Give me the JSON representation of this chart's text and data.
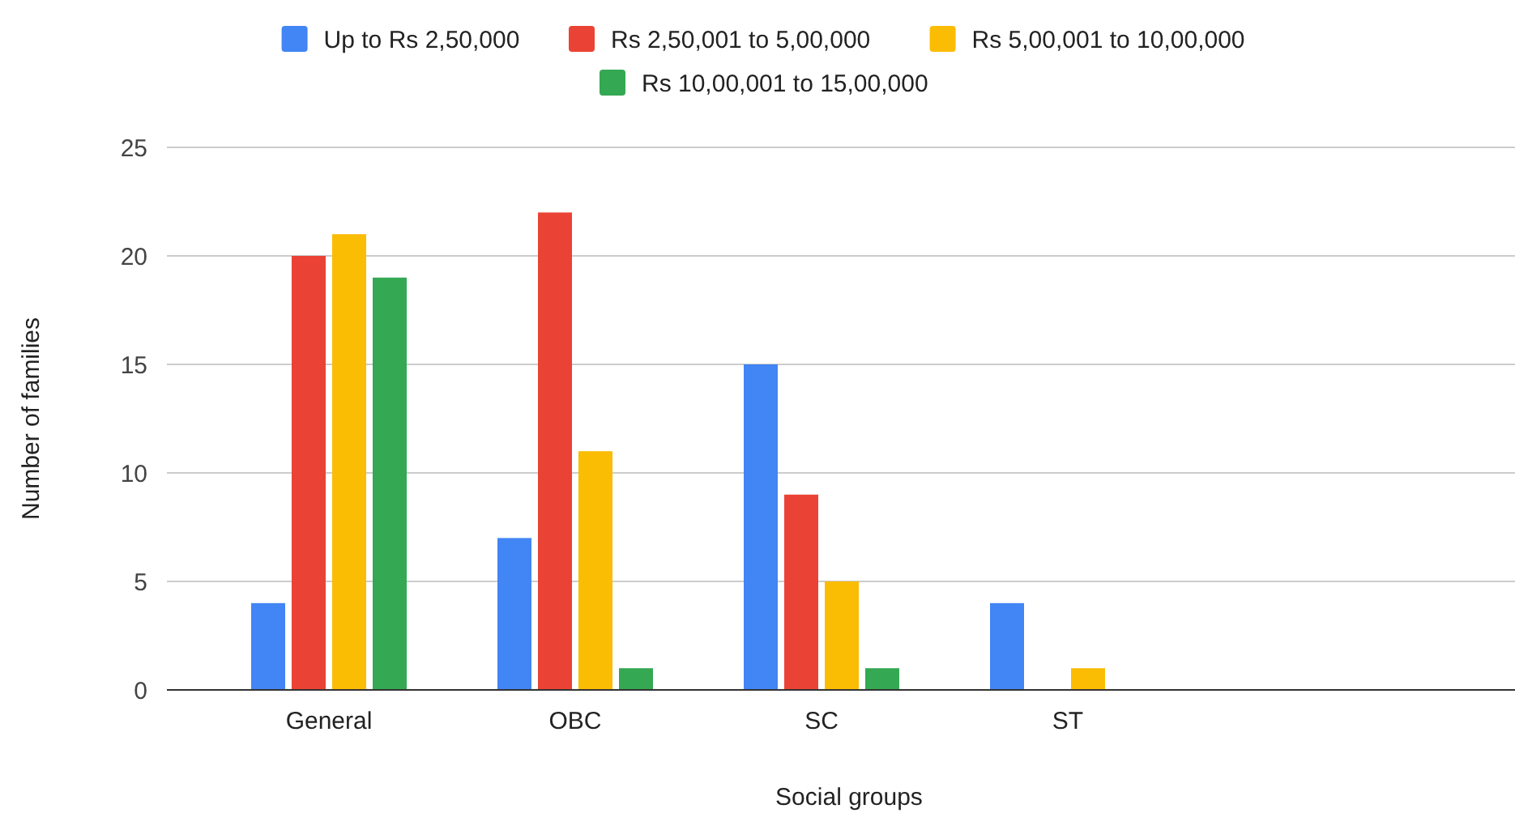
{
  "chart_data": {
    "type": "bar",
    "xlabel": "Social groups",
    "ylabel": "Number of families",
    "categories": [
      "General",
      "OBC",
      "SC",
      "ST",
      null
    ],
    "series": [
      {
        "name": "Up to Rs 2,50,000",
        "color": "#4285f4",
        "values": [
          4,
          7,
          15,
          4,
          null
        ]
      },
      {
        "name": "Rs 2,50,001 to 5,00,000",
        "color": "#ea4335",
        "values": [
          20,
          22,
          9,
          0,
          null
        ]
      },
      {
        "name": "Rs 5,00,001 to 10,00,000",
        "color": "#fbbc04",
        "values": [
          21,
          11,
          5,
          1,
          null
        ]
      },
      {
        "name": "Rs 10,00,001 to 15,00,000",
        "color": "#34a853",
        "values": [
          19,
          1,
          1,
          0,
          null
        ]
      }
    ],
    "ylim": [
      0,
      25
    ],
    "yticks": [
      0,
      5,
      10,
      15,
      20,
      25
    ],
    "grid": "y",
    "legend": "top"
  }
}
